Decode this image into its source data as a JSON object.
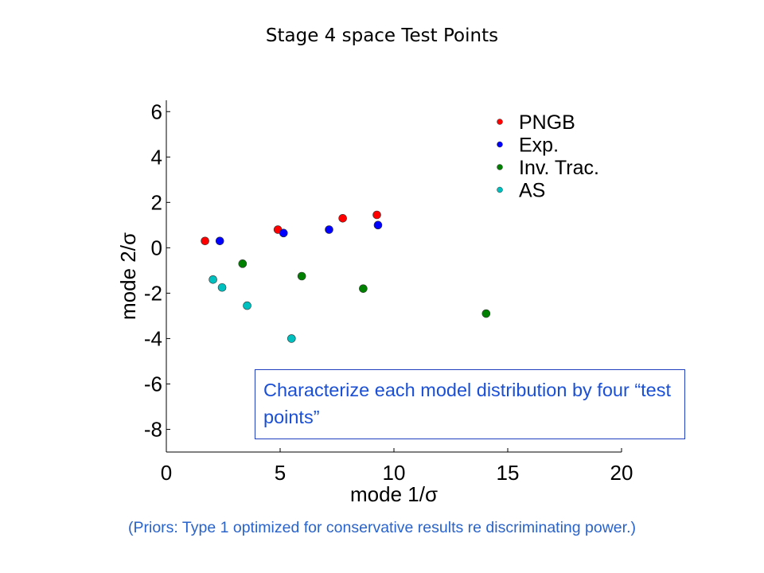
{
  "slide": {
    "title": "Stage 4 space Test Points",
    "annotation": "Characterize each model distribution by four “test points”",
    "footnote": "(Priors: Type 1 optimized for conservative results re discriminating power.)"
  },
  "chart_data": {
    "type": "scatter",
    "title": "",
    "xlabel": "mode 1/σ",
    "ylabel": "mode 2/σ",
    "xlim": [
      0,
      20
    ],
    "ylim": [
      -9,
      6.5
    ],
    "xticks": [
      0,
      5,
      10,
      15,
      20
    ],
    "yticks": [
      6,
      4,
      2,
      0,
      -2,
      -4,
      -6,
      -8
    ],
    "grid": false,
    "legend_position": "top-right",
    "series": [
      {
        "name": "PNGB",
        "color": "#ff0000",
        "points": [
          [
            1.7,
            0.3
          ],
          [
            4.9,
            0.8
          ],
          [
            7.75,
            1.3
          ],
          [
            9.25,
            1.45
          ]
        ]
      },
      {
        "name": "Exp.",
        "color": "#0000ff",
        "points": [
          [
            2.35,
            0.3
          ],
          [
            5.15,
            0.65
          ],
          [
            7.15,
            0.8
          ],
          [
            9.3,
            1.0
          ]
        ]
      },
      {
        "name": "Inv. Trac.",
        "color": "#008000",
        "points": [
          [
            3.35,
            -0.7
          ],
          [
            5.95,
            -1.25
          ],
          [
            8.65,
            -1.8
          ],
          [
            14.05,
            -2.9
          ]
        ]
      },
      {
        "name": "AS",
        "color": "#00bfbf",
        "points": [
          [
            2.05,
            -1.4
          ],
          [
            2.45,
            -1.75
          ],
          [
            3.55,
            -2.55
          ],
          [
            5.5,
            -4.0
          ]
        ]
      }
    ]
  }
}
